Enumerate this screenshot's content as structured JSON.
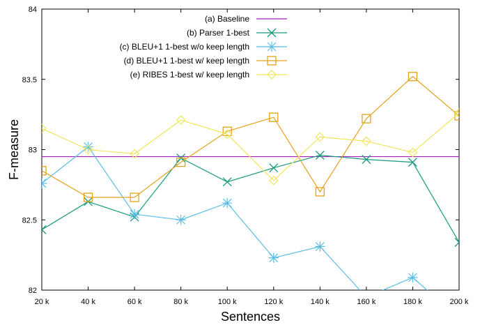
{
  "chart_data": {
    "type": "line",
    "xlabel": "Sentences",
    "ylabel": "F-measure",
    "ylim": [
      82,
      84
    ],
    "x_ticks": [
      "20 k",
      "40 k",
      "60 k",
      "80 k",
      "100 k",
      "120 k",
      "140 k",
      "160 k",
      "180 k",
      "200 k"
    ],
    "y_ticks": [
      "82",
      "82.5",
      "83",
      "83.5",
      "84"
    ],
    "y_tick_values": [
      82,
      82.5,
      83,
      83.5,
      84
    ],
    "legend_position": "top-right",
    "grid": false,
    "series": [
      {
        "name": "(a) Baseline",
        "color": "#a020c0",
        "marker": "none",
        "values": [
          82.95,
          82.95,
          82.95,
          82.95,
          82.95,
          82.95,
          82.95,
          82.95,
          82.95,
          82.95
        ]
      },
      {
        "name": "(b) Parser 1-best",
        "color": "#159a7c",
        "marker": "x",
        "values": [
          82.43,
          82.63,
          82.52,
          82.94,
          82.77,
          82.87,
          82.96,
          82.93,
          82.91,
          82.34
        ]
      },
      {
        "name": "(c) BLEU+1 1-best w/o keep length",
        "color": "#5bbde8",
        "marker": "star",
        "values": [
          82.76,
          83.02,
          82.54,
          82.5,
          82.62,
          82.23,
          82.31,
          81.95,
          82.09,
          81.8
        ]
      },
      {
        "name": "(d) BLEU+1 1-best w/ keep length",
        "color": "#e3a21a",
        "marker": "square",
        "values": [
          82.85,
          82.66,
          82.66,
          82.91,
          83.13,
          83.23,
          82.7,
          83.22,
          83.52,
          83.24
        ]
      },
      {
        "name": "(e) RIBES 1-best w/ keep length",
        "color": "#f0e55a",
        "marker": "diamond",
        "values": [
          83.15,
          83.0,
          82.97,
          83.21,
          83.11,
          82.78,
          83.09,
          83.06,
          82.98,
          83.26
        ]
      }
    ]
  }
}
